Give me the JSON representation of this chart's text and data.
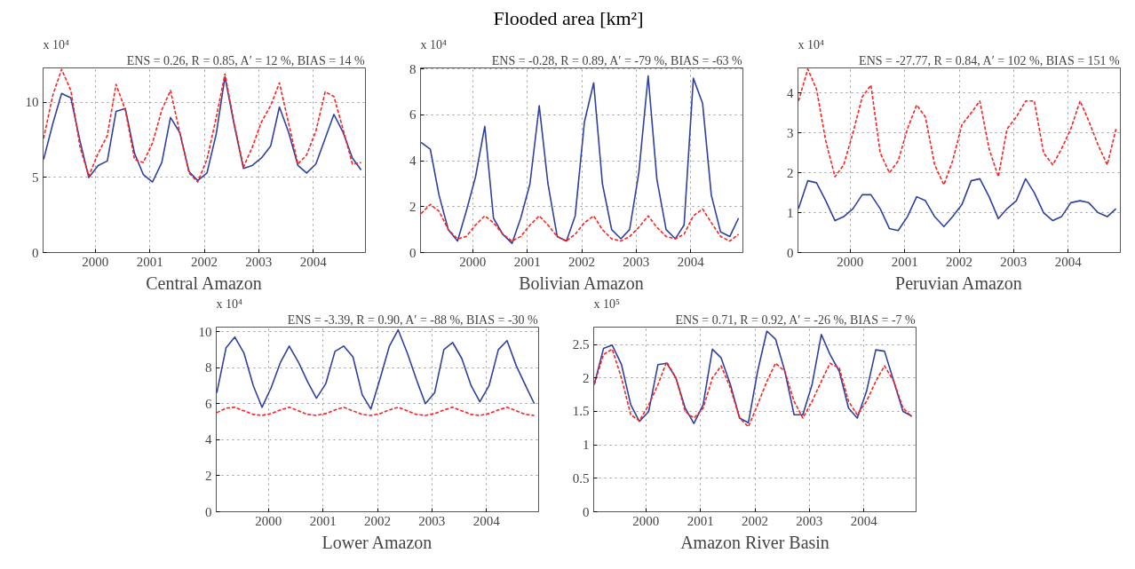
{
  "chart_data": [
    {
      "type": "line",
      "subtitle": "ENS = 0.26, R = 0.85, A′ = 12 %, BIAS = 14 %",
      "xlabel": "Central Amazon",
      "annotations": [
        "x 10⁴"
      ],
      "grid": true,
      "xlim": [
        1999.04,
        2004.96
      ],
      "xticks": [
        2000,
        2001,
        2002,
        2003,
        2004
      ],
      "ylim": [
        0,
        12.3
      ],
      "yticks": [
        0,
        5,
        10
      ],
      "x": [
        1999.05,
        1999.22,
        1999.38,
        1999.55,
        1999.72,
        1999.88,
        2000.05,
        2000.22,
        2000.38,
        2000.55,
        2000.72,
        2000.88,
        2001.05,
        2001.22,
        2001.38,
        2001.55,
        2001.72,
        2001.88,
        2002.05,
        2002.22,
        2002.38,
        2002.55,
        2002.72,
        2002.88,
        2003.05,
        2003.22,
        2003.38,
        2003.55,
        2003.72,
        2003.88,
        2004.05,
        2004.22,
        2004.38,
        2004.55,
        2004.72,
        2004.88
      ],
      "series": [
        {
          "color": "#3040a0",
          "line_style": "solid",
          "values": [
            6.2,
            8.6,
            10.6,
            10.3,
            7.4,
            5.0,
            5.8,
            6.1,
            9.4,
            9.6,
            6.6,
            5.2,
            4.7,
            6.0,
            9.0,
            8.0,
            5.4,
            4.8,
            5.3,
            7.9,
            11.7,
            8.5,
            5.6,
            5.8,
            6.3,
            7.1,
            9.7,
            8.0,
            5.8,
            5.3,
            5.9,
            7.6,
            9.2,
            8.0,
            6.3,
            5.5
          ]
        },
        {
          "color": "#ff2020",
          "line_style": "dashed",
          "values": [
            7.6,
            10.5,
            12.2,
            10.8,
            7.0,
            5.1,
            6.6,
            7.8,
            11.2,
            9.5,
            6.2,
            6.0,
            7.3,
            9.5,
            10.8,
            8.0,
            5.3,
            4.7,
            6.2,
            9.0,
            11.9,
            8.6,
            5.7,
            7.0,
            8.7,
            9.8,
            11.3,
            8.6,
            5.9,
            6.5,
            8.1,
            10.7,
            10.4,
            8.2,
            5.9,
            6.0
          ]
        }
      ]
    },
    {
      "type": "line",
      "title": "Flooded area [km²]",
      "subtitle": "ENS = -0.28, R = 0.89, A′ = -79 %, BIAS = -63 %",
      "xlabel": "Bolivian Amazon",
      "annotations": [
        "x 10⁴"
      ],
      "grid": true,
      "xlim": [
        1999.04,
        2004.96
      ],
      "xticks": [
        2000,
        2001,
        2002,
        2003,
        2004
      ],
      "ylim": [
        0,
        8.05
      ],
      "yticks": [
        0,
        2,
        4,
        6,
        8
      ],
      "x": [
        1999.05,
        1999.22,
        1999.38,
        1999.55,
        1999.72,
        1999.88,
        2000.05,
        2000.22,
        2000.38,
        2000.55,
        2000.72,
        2000.88,
        2001.05,
        2001.22,
        2001.38,
        2001.55,
        2001.72,
        2001.88,
        2002.05,
        2002.22,
        2002.38,
        2002.55,
        2002.72,
        2002.88,
        2003.05,
        2003.22,
        2003.38,
        2003.55,
        2003.72,
        2003.88,
        2004.05,
        2004.22,
        2004.38,
        2004.55,
        2004.72,
        2004.88
      ],
      "series": [
        {
          "color": "#3040a0",
          "line_style": "solid",
          "values": [
            4.8,
            4.5,
            2.5,
            1.0,
            0.5,
            1.8,
            3.3,
            5.5,
            1.5,
            0.8,
            0.4,
            1.5,
            3.0,
            6.4,
            3.0,
            0.7,
            0.5,
            1.6,
            5.7,
            7.4,
            3.0,
            1.0,
            0.6,
            1.0,
            3.5,
            7.7,
            3.2,
            1.0,
            0.6,
            1.2,
            7.6,
            6.5,
            2.5,
            0.9,
            0.7,
            1.5
          ]
        },
        {
          "color": "#ff2020",
          "line_style": "dashed",
          "values": [
            1.7,
            2.1,
            1.8,
            1.0,
            0.6,
            0.7,
            1.2,
            1.6,
            1.3,
            0.8,
            0.5,
            0.7,
            1.2,
            1.6,
            1.2,
            0.7,
            0.5,
            0.8,
            1.3,
            1.6,
            1.0,
            0.6,
            0.5,
            0.7,
            1.1,
            1.6,
            1.1,
            0.7,
            0.6,
            0.8,
            1.6,
            1.9,
            1.3,
            0.7,
            0.5,
            0.8
          ]
        }
      ]
    },
    {
      "type": "line",
      "subtitle": "ENS = -27.77, R = 0.84, A′ = 102 %, BIAS = 151 %",
      "xlabel": "Peruvian Amazon",
      "annotations": [
        "x 10⁴"
      ],
      "grid": true,
      "xlim": [
        1999.04,
        2004.96
      ],
      "xticks": [
        2000,
        2001,
        2002,
        2003,
        2004
      ],
      "ylim": [
        0,
        4.63
      ],
      "yticks": [
        0,
        1,
        2,
        3,
        4
      ],
      "x": [
        1999.05,
        1999.22,
        1999.38,
        1999.55,
        1999.72,
        1999.88,
        2000.05,
        2000.22,
        2000.38,
        2000.55,
        2000.72,
        2000.88,
        2001.05,
        2001.22,
        2001.38,
        2001.55,
        2001.72,
        2001.88,
        2002.05,
        2002.22,
        2002.38,
        2002.55,
        2002.72,
        2002.88,
        2003.05,
        2003.22,
        2003.38,
        2003.55,
        2003.72,
        2003.88,
        2004.05,
        2004.22,
        2004.38,
        2004.55,
        2004.72,
        2004.88
      ],
      "series": [
        {
          "color": "#3040a0",
          "line_style": "solid",
          "values": [
            1.1,
            1.8,
            1.75,
            1.3,
            0.8,
            0.9,
            1.1,
            1.45,
            1.45,
            1.1,
            0.6,
            0.55,
            0.9,
            1.4,
            1.3,
            0.9,
            0.65,
            0.9,
            1.2,
            1.8,
            1.85,
            1.4,
            0.85,
            1.1,
            1.3,
            1.85,
            1.5,
            1.0,
            0.8,
            0.9,
            1.25,
            1.3,
            1.25,
            1.0,
            0.9,
            1.1
          ]
        },
        {
          "color": "#ff2020",
          "line_style": "dashed",
          "values": [
            3.8,
            4.6,
            4.1,
            2.8,
            1.9,
            2.2,
            3.0,
            3.9,
            4.2,
            2.5,
            2.0,
            2.3,
            3.1,
            3.7,
            3.4,
            2.2,
            1.7,
            2.3,
            3.2,
            3.5,
            3.8,
            2.6,
            1.9,
            3.1,
            3.4,
            3.8,
            3.8,
            2.5,
            2.2,
            2.6,
            3.1,
            3.8,
            3.3,
            2.7,
            2.2,
            3.1
          ]
        }
      ]
    },
    {
      "type": "line",
      "subtitle": "ENS = -3.39, R = 0.90, A′ = -88 %, BIAS = -30 %",
      "xlabel": "Lower Amazon",
      "annotations": [
        "x 10⁴"
      ],
      "grid": true,
      "xlim": [
        1999.04,
        2004.96
      ],
      "xticks": [
        2000,
        2001,
        2002,
        2003,
        2004
      ],
      "ylim": [
        0,
        10.25
      ],
      "yticks": [
        0,
        2,
        4,
        6,
        8,
        10
      ],
      "x": [
        1999.05,
        1999.22,
        1999.38,
        1999.55,
        1999.72,
        1999.88,
        2000.05,
        2000.22,
        2000.38,
        2000.55,
        2000.72,
        2000.88,
        2001.05,
        2001.22,
        2001.38,
        2001.55,
        2001.72,
        2001.88,
        2002.05,
        2002.22,
        2002.38,
        2002.55,
        2002.72,
        2002.88,
        2003.05,
        2003.22,
        2003.38,
        2003.55,
        2003.72,
        2003.88,
        2004.05,
        2004.22,
        2004.38,
        2004.55,
        2004.72,
        2004.88
      ],
      "series": [
        {
          "color": "#3040a0",
          "line_style": "solid",
          "values": [
            6.6,
            9.1,
            9.7,
            8.8,
            7.0,
            5.8,
            6.9,
            8.3,
            9.2,
            8.3,
            7.2,
            6.3,
            7.1,
            8.9,
            9.2,
            8.6,
            6.5,
            5.7,
            7.4,
            9.2,
            10.1,
            8.8,
            7.3,
            6.0,
            6.6,
            9.0,
            9.4,
            8.5,
            7.0,
            6.1,
            7.0,
            9.0,
            9.5,
            8.1,
            7.0,
            6.0
          ]
        },
        {
          "color": "#ff2020",
          "line_style": "dashed",
          "values": [
            5.5,
            5.75,
            5.8,
            5.6,
            5.4,
            5.35,
            5.45,
            5.65,
            5.8,
            5.6,
            5.4,
            5.35,
            5.45,
            5.65,
            5.8,
            5.6,
            5.4,
            5.35,
            5.45,
            5.65,
            5.8,
            5.6,
            5.4,
            5.35,
            5.45,
            5.65,
            5.8,
            5.6,
            5.4,
            5.35,
            5.45,
            5.65,
            5.8,
            5.6,
            5.4,
            5.35
          ]
        }
      ]
    },
    {
      "type": "line",
      "subtitle": "ENS = 0.71, R = 0.92, A′ = -26 %, BIAS = -7 %",
      "xlabel": "Amazon River Basin",
      "annotations": [
        "x 10⁵"
      ],
      "grid": true,
      "xlim": [
        1999.04,
        2004.96
      ],
      "xticks": [
        2000,
        2001,
        2002,
        2003,
        2004
      ],
      "ylim": [
        0,
        2.76
      ],
      "yticks": [
        0,
        0.5,
        1,
        1.5,
        2,
        2.5
      ],
      "x": [
        1999.05,
        1999.22,
        1999.38,
        1999.55,
        1999.72,
        1999.88,
        2000.05,
        2000.22,
        2000.38,
        2000.55,
        2000.72,
        2000.88,
        2001.05,
        2001.22,
        2001.38,
        2001.55,
        2001.72,
        2001.88,
        2002.05,
        2002.22,
        2002.38,
        2002.55,
        2002.72,
        2002.88,
        2003.05,
        2003.22,
        2003.38,
        2003.55,
        2003.72,
        2003.88,
        2004.05,
        2004.22,
        2004.38,
        2004.55,
        2004.72,
        2004.88
      ],
      "series": [
        {
          "color": "#3040a0",
          "line_style": "solid",
          "values": [
            1.9,
            2.44,
            2.49,
            2.2,
            1.6,
            1.35,
            1.5,
            2.2,
            2.22,
            2.0,
            1.55,
            1.32,
            1.6,
            2.43,
            2.3,
            1.9,
            1.4,
            1.33,
            2.1,
            2.7,
            2.58,
            2.1,
            1.45,
            1.45,
            1.9,
            2.65,
            2.35,
            2.1,
            1.55,
            1.4,
            1.8,
            2.42,
            2.4,
            1.95,
            1.5,
            1.43
          ]
        },
        {
          "color": "#ff2020",
          "line_style": "dashed",
          "values": [
            1.9,
            2.35,
            2.43,
            2.0,
            1.45,
            1.36,
            1.6,
            1.9,
            2.24,
            2.0,
            1.5,
            1.4,
            1.55,
            2.0,
            2.18,
            1.85,
            1.4,
            1.27,
            1.6,
            1.95,
            2.22,
            2.1,
            1.65,
            1.4,
            1.65,
            1.95,
            2.22,
            2.15,
            1.65,
            1.45,
            1.65,
            1.95,
            2.18,
            1.95,
            1.55,
            1.42
          ]
        }
      ]
    }
  ]
}
